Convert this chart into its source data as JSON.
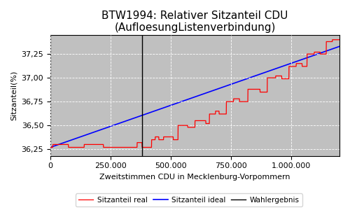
{
  "title": "BTW1994: Relativer Sitzanteil CDU\n(AufloesungListenverbindung)",
  "xlabel": "Zweitstimmen CDU in Mecklenburg-Vorpommern",
  "ylabel": "Sitzanteil(%)",
  "xlim": [
    0,
    1200000
  ],
  "ylim": [
    36.18,
    37.45
  ],
  "yticks": [
    36.25,
    36.5,
    36.75,
    37.0,
    37.25
  ],
  "xtick_positions": [
    0,
    250000,
    500000,
    750000,
    1000000
  ],
  "xtick_labels": [
    "0",
    "250.000",
    "500.000",
    "750.000",
    "1.000.000"
  ],
  "vline_x": 380000,
  "background_color": "#c0c0c0",
  "grid_color": "white",
  "legend_labels": [
    "Sitzanteil real",
    "Sitzanteil ideal",
    "Wahlergebnis"
  ],
  "title_fontsize": 11,
  "axis_fontsize": 8,
  "tick_fontsize": 8,
  "y_ideal_start": 36.27,
  "y_ideal_end": 37.33,
  "steps": [
    [
      0,
      36.27
    ],
    [
      10000,
      36.3
    ],
    [
      55000,
      36.3
    ],
    [
      75000,
      36.27
    ],
    [
      80000,
      36.27
    ],
    [
      120000,
      36.27
    ],
    [
      140000,
      36.3
    ],
    [
      200000,
      36.3
    ],
    [
      220000,
      36.27
    ],
    [
      300000,
      36.27
    ],
    [
      360000,
      36.32
    ],
    [
      375000,
      36.32
    ],
    [
      380000,
      36.27
    ],
    [
      395000,
      36.27
    ],
    [
      420000,
      36.35
    ],
    [
      435000,
      36.38
    ],
    [
      450000,
      36.35
    ],
    [
      470000,
      36.38
    ],
    [
      490000,
      36.38
    ],
    [
      510000,
      36.35
    ],
    [
      530000,
      36.5
    ],
    [
      555000,
      36.5
    ],
    [
      570000,
      36.48
    ],
    [
      600000,
      36.55
    ],
    [
      630000,
      36.55
    ],
    [
      645000,
      36.52
    ],
    [
      660000,
      36.62
    ],
    [
      685000,
      36.65
    ],
    [
      700000,
      36.62
    ],
    [
      730000,
      36.75
    ],
    [
      760000,
      36.78
    ],
    [
      785000,
      36.75
    ],
    [
      820000,
      36.88
    ],
    [
      855000,
      36.88
    ],
    [
      870000,
      36.85
    ],
    [
      900000,
      37.0
    ],
    [
      935000,
      37.02
    ],
    [
      960000,
      36.99
    ],
    [
      990000,
      37.12
    ],
    [
      1020000,
      37.15
    ],
    [
      1045000,
      37.12
    ],
    [
      1065000,
      37.25
    ],
    [
      1095000,
      37.27
    ],
    [
      1120000,
      37.25
    ],
    [
      1145000,
      37.38
    ],
    [
      1170000,
      37.4
    ],
    [
      1200000,
      37.4
    ]
  ]
}
